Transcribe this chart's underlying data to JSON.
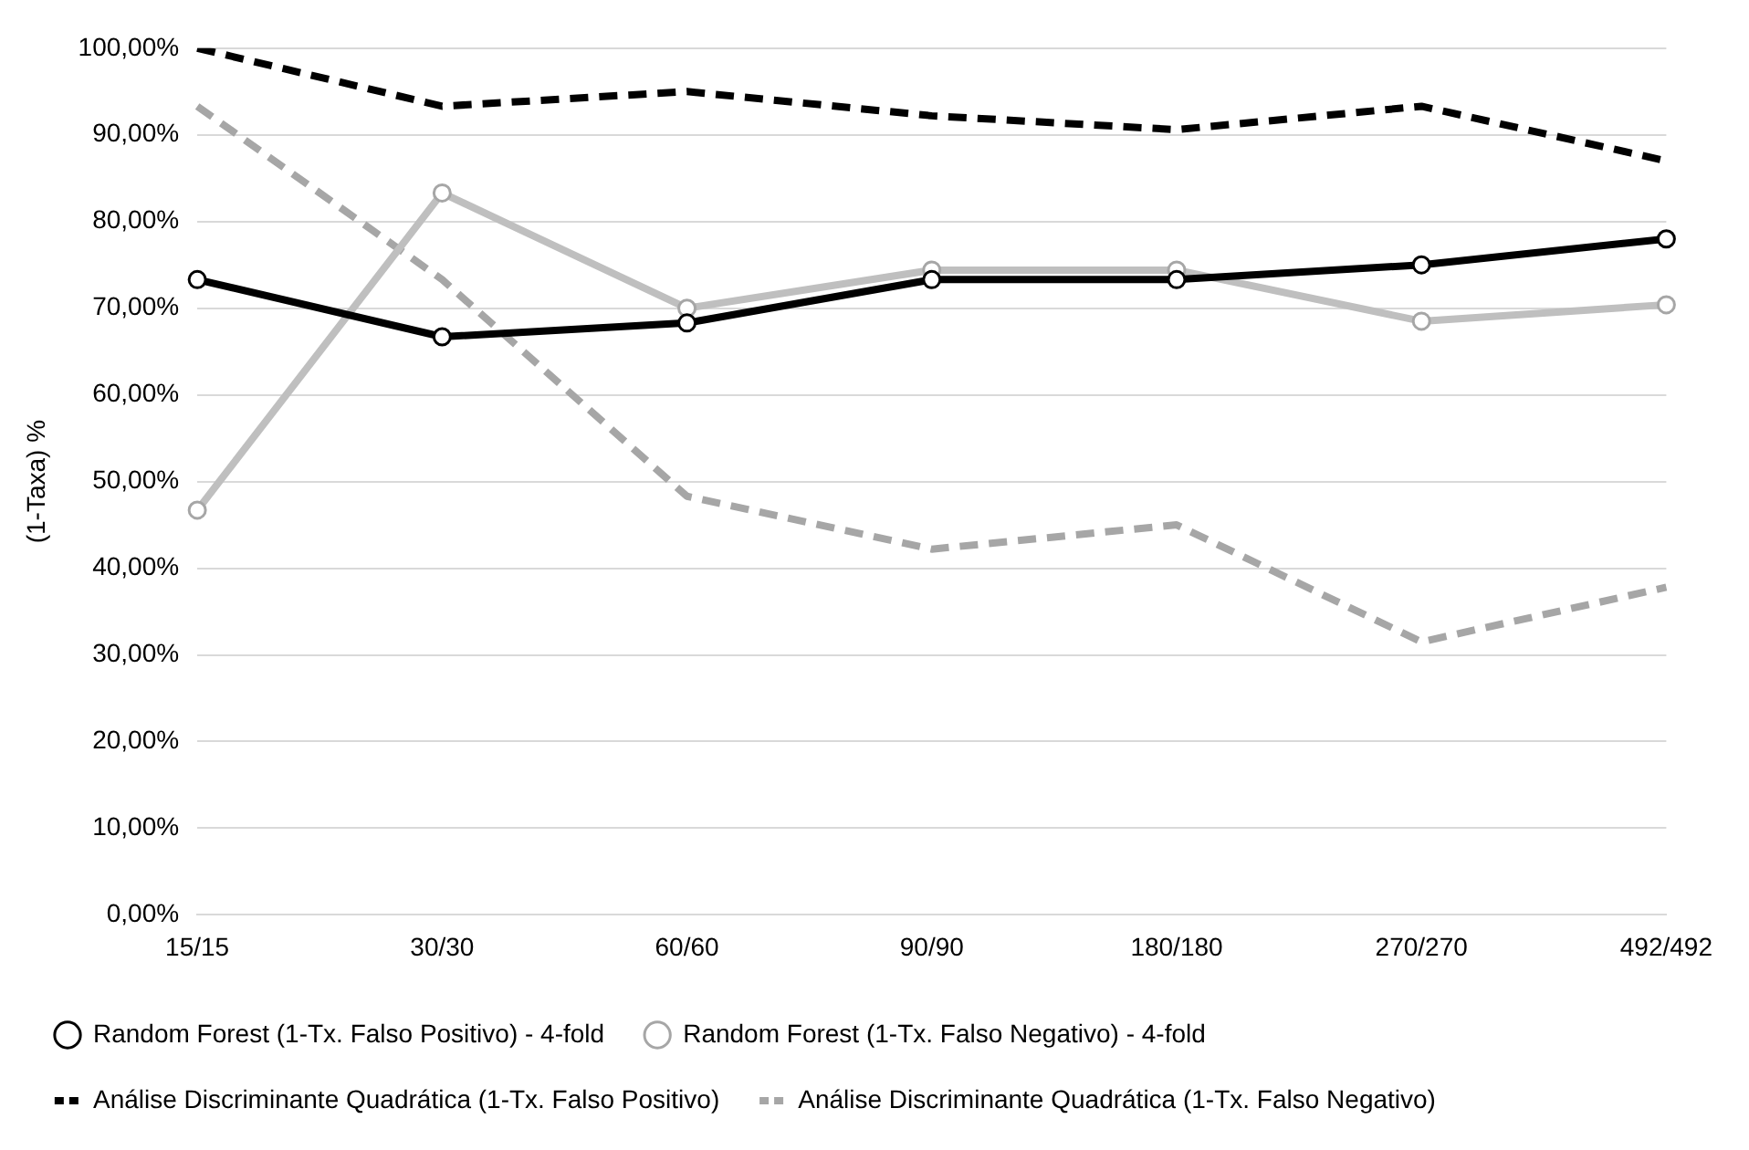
{
  "chart_data": {
    "type": "line",
    "ylabel": "(1-Taxa) %",
    "categories": [
      "15/15",
      "30/30",
      "60/60",
      "90/90",
      "180/180",
      "270/270",
      "492/492"
    ],
    "series": [
      {
        "name": "Random Forest (1-Tx. Falso Positivo) - 4-fold",
        "color": "#000000",
        "marker": "circle",
        "line_style": "solid",
        "values": [
          73.3,
          66.7,
          68.3,
          73.3,
          73.3,
          75.0,
          78.0
        ]
      },
      {
        "name": "Random Forest (1-Tx. Falso Negativo) - 4-fold",
        "color": "#bfbfbf",
        "marker": "circle",
        "line_style": "solid",
        "values": [
          46.7,
          83.3,
          70.0,
          74.4,
          74.4,
          68.5,
          70.4
        ]
      },
      {
        "name": "Análise Discriminante Quadrática (1-Tx. Falso Positivo)",
        "color": "#000000",
        "marker": "none",
        "line_style": "dashed",
        "values": [
          100.0,
          93.3,
          95.0,
          92.2,
          90.6,
          93.3,
          87.0
        ]
      },
      {
        "name": "Análise Discriminante Quadrática (1-Tx. Falso Negativo)",
        "color": "#a6a6a6",
        "marker": "none",
        "line_style": "dashed",
        "values": [
          93.3,
          73.3,
          48.3,
          42.2,
          45.0,
          31.5,
          37.8
        ]
      }
    ],
    "ylim": [
      0,
      100
    ],
    "yticks": [
      {
        "value": 0,
        "label": "0,00%"
      },
      {
        "value": 10,
        "label": "10,00%"
      },
      {
        "value": 20,
        "label": "20,00%"
      },
      {
        "value": 30,
        "label": "30,00%"
      },
      {
        "value": 40,
        "label": "40,00%"
      },
      {
        "value": 50,
        "label": "50,00%"
      },
      {
        "value": 60,
        "label": "60,00%"
      },
      {
        "value": 70,
        "label": "70,00%"
      },
      {
        "value": 80,
        "label": "80,00%"
      },
      {
        "value": 90,
        "label": "90,00%"
      },
      {
        "value": 100,
        "label": "100,00%"
      }
    ],
    "grid": "y",
    "legend": "bottom"
  }
}
